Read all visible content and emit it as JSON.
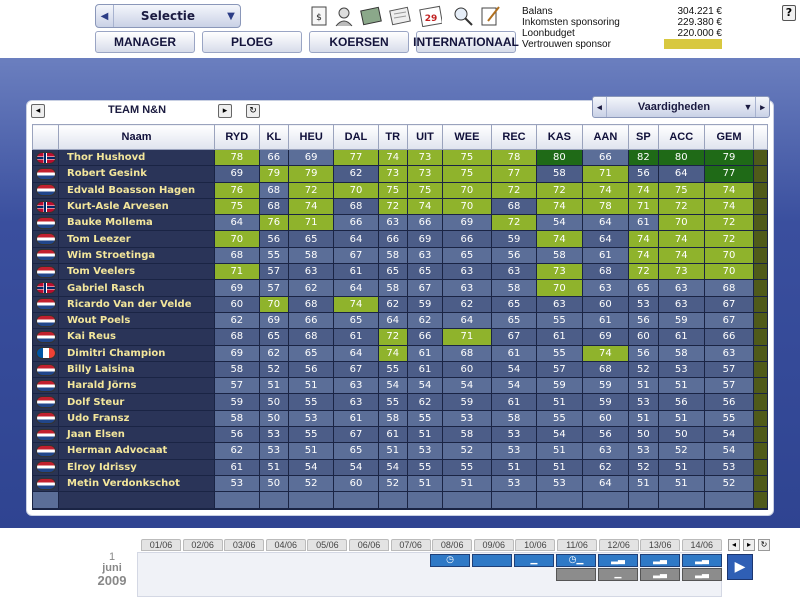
{
  "header": {
    "selector_label": "Selectie",
    "tabs": [
      "MANAGER",
      "PLOEG",
      "KOERSEN",
      "INTERNATIONAAL"
    ],
    "calendar_day": "29",
    "help_label": "?"
  },
  "finance": {
    "balans_label": "Balans",
    "balans_value": "304.221 €",
    "inkomsten_label": "Inkomsten sponsoring",
    "inkomsten_value": "229.380 €",
    "loonbudget_label": "Loonbudget",
    "loonbudget_value": "220.000 €",
    "vertrouwen_label": "Vertrouwen sponsor",
    "vertrouwen_level": 1.0,
    "vertrouwen_color": "#d8c840"
  },
  "panel": {
    "title": "TEAM N&N",
    "view_label": "Vaardigheden"
  },
  "table": {
    "columns": [
      "Naam",
      "RYD",
      "KL",
      "HEU",
      "DAL",
      "TR",
      "UIT",
      "WEE",
      "REC",
      "KAS",
      "AAN",
      "SP",
      "ACC",
      "GEM"
    ],
    "rows": [
      {
        "flag": "NO",
        "name": "Thor Hushovd",
        "vals": [
          78,
          66,
          69,
          77,
          74,
          73,
          75,
          78,
          80,
          66,
          82,
          80,
          79
        ],
        "cls": [
          "g",
          "n",
          "n",
          "g",
          "g",
          "g",
          "g",
          "g",
          "t",
          "n",
          "t",
          "t",
          "t"
        ]
      },
      {
        "flag": "NL",
        "name": "Robert Gesink",
        "vals": [
          69,
          79,
          79,
          62,
          73,
          73,
          75,
          77,
          58,
          71,
          56,
          64,
          77
        ],
        "cls": [
          "n",
          "g",
          "g",
          "n",
          "g",
          "g",
          "g",
          "g",
          "n",
          "g",
          "n",
          "n",
          "t"
        ]
      },
      {
        "flag": "NL",
        "name": "Edvald Boasson Hagen",
        "vals": [
          76,
          68,
          72,
          70,
          75,
          75,
          70,
          72,
          72,
          74,
          74,
          75,
          74
        ],
        "cls": [
          "g",
          "n",
          "g",
          "g",
          "g",
          "g",
          "g",
          "g",
          "g",
          "g",
          "g",
          "g",
          "g"
        ]
      },
      {
        "flag": "NO",
        "name": "Kurt-Asle Arvesen",
        "vals": [
          75,
          68,
          74,
          68,
          72,
          74,
          70,
          68,
          74,
          78,
          71,
          72,
          74
        ],
        "cls": [
          "g",
          "n",
          "g",
          "n",
          "g",
          "g",
          "g",
          "n",
          "g",
          "g",
          "g",
          "g",
          "g"
        ]
      },
      {
        "flag": "NL",
        "name": "Bauke Mollema",
        "vals": [
          64,
          76,
          71,
          66,
          63,
          66,
          69,
          72,
          54,
          64,
          61,
          70,
          72
        ],
        "cls": [
          "n",
          "g",
          "g",
          "n",
          "n",
          "n",
          "n",
          "g",
          "n",
          "n",
          "n",
          "g",
          "g"
        ]
      },
      {
        "flag": "NL",
        "name": "Tom Leezer",
        "vals": [
          70,
          56,
          65,
          64,
          66,
          69,
          66,
          59,
          74,
          64,
          74,
          74,
          72
        ],
        "cls": [
          "g",
          "n",
          "n",
          "n",
          "n",
          "n",
          "n",
          "n",
          "g",
          "n",
          "g",
          "g",
          "g"
        ]
      },
      {
        "flag": "NL",
        "name": "Wim Stroetinga",
        "vals": [
          68,
          55,
          58,
          67,
          58,
          63,
          65,
          56,
          58,
          61,
          74,
          74,
          70
        ],
        "cls": [
          "n",
          "n",
          "n",
          "n",
          "n",
          "n",
          "n",
          "n",
          "n",
          "n",
          "g",
          "g",
          "g"
        ]
      },
      {
        "flag": "NL",
        "name": "Tom Veelers",
        "vals": [
          71,
          57,
          63,
          61,
          65,
          65,
          63,
          63,
          73,
          68,
          72,
          73,
          70
        ],
        "cls": [
          "g",
          "n",
          "n",
          "n",
          "n",
          "n",
          "n",
          "n",
          "g",
          "n",
          "g",
          "g",
          "g"
        ]
      },
      {
        "flag": "NO",
        "name": "Gabriel Rasch",
        "vals": [
          69,
          57,
          62,
          64,
          58,
          67,
          63,
          58,
          70,
          63,
          65,
          63,
          68
        ],
        "cls": [
          "n",
          "n",
          "n",
          "n",
          "n",
          "n",
          "n",
          "n",
          "g",
          "n",
          "n",
          "n",
          "n"
        ]
      },
      {
        "flag": "NL",
        "name": "Ricardo Van der Velde",
        "vals": [
          60,
          70,
          68,
          74,
          62,
          59,
          62,
          65,
          63,
          60,
          53,
          63,
          67
        ],
        "cls": [
          "n",
          "g",
          "n",
          "g",
          "n",
          "n",
          "n",
          "n",
          "n",
          "n",
          "n",
          "n",
          "n"
        ]
      },
      {
        "flag": "NL",
        "name": "Wout Poels",
        "vals": [
          62,
          69,
          66,
          65,
          64,
          62,
          64,
          65,
          55,
          61,
          56,
          59,
          67
        ],
        "cls": [
          "n",
          "n",
          "n",
          "n",
          "n",
          "n",
          "n",
          "n",
          "n",
          "n",
          "n",
          "n",
          "n"
        ]
      },
      {
        "flag": "NL",
        "name": "Kai Reus",
        "vals": [
          68,
          65,
          68,
          61,
          72,
          66,
          71,
          67,
          61,
          69,
          60,
          61,
          66
        ],
        "cls": [
          "n",
          "n",
          "n",
          "n",
          "g",
          "n",
          "g",
          "n",
          "n",
          "n",
          "n",
          "n",
          "n"
        ]
      },
      {
        "flag": "FR",
        "name": "Dimitri Champion",
        "vals": [
          69,
          62,
          65,
          64,
          74,
          61,
          68,
          61,
          55,
          74,
          56,
          58,
          63
        ],
        "cls": [
          "n",
          "n",
          "n",
          "n",
          "g",
          "n",
          "n",
          "n",
          "n",
          "g",
          "n",
          "n",
          "n"
        ]
      },
      {
        "flag": "NL",
        "name": "Billy Laisina",
        "vals": [
          58,
          52,
          56,
          67,
          55,
          61,
          60,
          54,
          57,
          68,
          52,
          53,
          57
        ],
        "cls": [
          "n",
          "n",
          "n",
          "n",
          "n",
          "n",
          "n",
          "n",
          "n",
          "n",
          "n",
          "n",
          "n"
        ]
      },
      {
        "flag": "NL",
        "name": "Harald Jörns",
        "vals": [
          57,
          51,
          51,
          63,
          54,
          54,
          54,
          54,
          59,
          59,
          51,
          51,
          57
        ],
        "cls": [
          "n",
          "n",
          "n",
          "n",
          "n",
          "n",
          "n",
          "n",
          "n",
          "n",
          "n",
          "n",
          "n"
        ]
      },
      {
        "flag": "NL",
        "name": "Dolf Steur",
        "vals": [
          59,
          50,
          55,
          63,
          55,
          62,
          59,
          61,
          51,
          59,
          53,
          56,
          56
        ],
        "cls": [
          "n",
          "n",
          "n",
          "n",
          "n",
          "n",
          "n",
          "n",
          "n",
          "n",
          "n",
          "n",
          "n"
        ]
      },
      {
        "flag": "NL",
        "name": "Udo Fransz",
        "vals": [
          58,
          50,
          53,
          61,
          58,
          55,
          53,
          58,
          55,
          60,
          51,
          51,
          55
        ],
        "cls": [
          "n",
          "n",
          "n",
          "n",
          "n",
          "n",
          "n",
          "n",
          "n",
          "n",
          "n",
          "n",
          "n"
        ]
      },
      {
        "flag": "NL",
        "name": "Jaan Elsen",
        "vals": [
          56,
          53,
          55,
          67,
          61,
          51,
          58,
          53,
          54,
          56,
          50,
          50,
          54
        ],
        "cls": [
          "n",
          "n",
          "n",
          "n",
          "n",
          "n",
          "n",
          "n",
          "n",
          "n",
          "n",
          "n",
          "n"
        ]
      },
      {
        "flag": "NL",
        "name": "Herman Advocaat",
        "vals": [
          62,
          53,
          51,
          65,
          51,
          53,
          52,
          53,
          51,
          63,
          53,
          52,
          54
        ],
        "cls": [
          "n",
          "n",
          "n",
          "n",
          "n",
          "n",
          "n",
          "n",
          "n",
          "n",
          "n",
          "n",
          "n"
        ]
      },
      {
        "flag": "NL",
        "name": "Elroy Idrissy",
        "vals": [
          61,
          51,
          54,
          54,
          54,
          55,
          55,
          51,
          51,
          62,
          52,
          51,
          53
        ],
        "cls": [
          "n",
          "n",
          "n",
          "n",
          "n",
          "n",
          "n",
          "n",
          "n",
          "n",
          "n",
          "n",
          "n"
        ]
      },
      {
        "flag": "NL",
        "name": "Metin Verdonkschot",
        "vals": [
          53,
          50,
          52,
          60,
          52,
          51,
          51,
          53,
          53,
          64,
          51,
          51,
          52
        ],
        "cls": [
          "n",
          "n",
          "n",
          "n",
          "n",
          "n",
          "n",
          "n",
          "n",
          "n",
          "n",
          "n",
          "n"
        ]
      }
    ]
  },
  "timeline": {
    "current_day": "1",
    "current_month": "juni",
    "current_year": "2009",
    "dates": [
      "01/06",
      "02/06",
      "03/06",
      "04/06",
      "05/06",
      "06/06",
      "07/06",
      "08/06",
      "09/06",
      "10/06",
      "11/06",
      "12/06",
      "13/06",
      "14/06"
    ]
  },
  "colors": {
    "good": "#8fb32c",
    "top": "#1f6a17",
    "normal": "#5b6e98",
    "header_bg": "#2a3a82"
  }
}
